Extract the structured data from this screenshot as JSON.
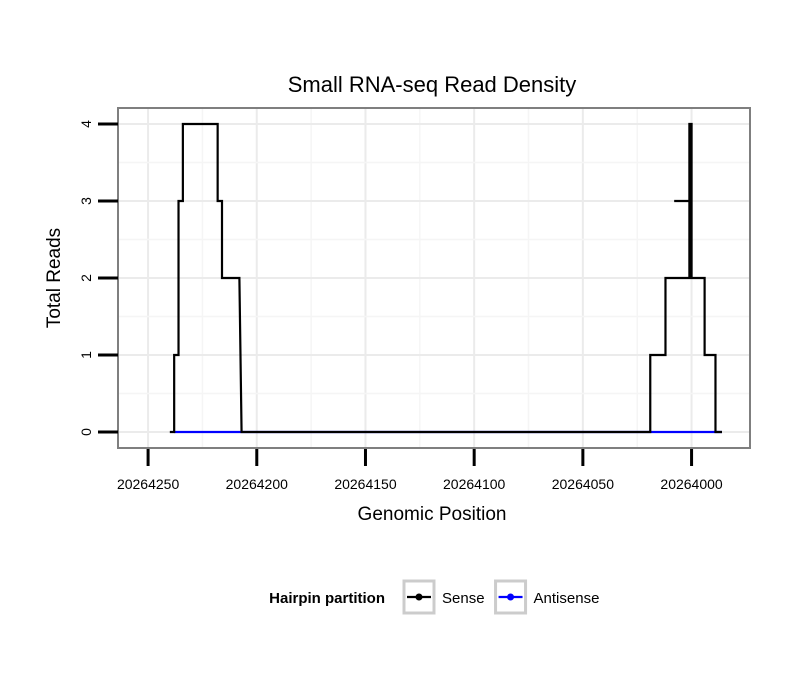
{
  "chart_data": {
    "type": "line",
    "title": "Small RNA-seq Read Density",
    "xlabel": "Genomic Position",
    "ylabel": "Total Reads",
    "xlim": [
      20264262,
      20263986
    ],
    "ylim": [
      0,
      4
    ],
    "x_reversed": true,
    "grid": true,
    "x_ticks": [
      20264250,
      20264200,
      20264150,
      20264100,
      20264050,
      20264000
    ],
    "x_tick_labels": [
      "20264250",
      "20264200",
      "20264150",
      "20264100",
      "20264050",
      "20264000"
    ],
    "y_ticks": [
      0,
      1,
      2,
      3,
      4
    ],
    "y_tick_labels": [
      "0",
      "1",
      "2",
      "3",
      "4"
    ],
    "legend": {
      "title": "Hairpin partition",
      "position": "bottom"
    },
    "series": [
      {
        "name": "Sense",
        "color": "#000000",
        "x": [
          20264240,
          20264238,
          20264238,
          20264236,
          20264236,
          20264234,
          20264234,
          20264232,
          20264232,
          20264218,
          20264218,
          20264216,
          20264216,
          20264214,
          20264214,
          20264208,
          20264208,
          20264207,
          20264207,
          20264019,
          20264019,
          20264012,
          20264012,
          20264010,
          20264010,
          20264001,
          20264001,
          20264000,
          20264000,
          20264008,
          20264008,
          20264000,
          20264000,
          20263994,
          20263994,
          20263989,
          20263989,
          20263986,
          20263986
        ],
        "y": [
          0,
          0,
          1,
          1,
          3,
          3,
          4,
          4,
          4,
          4,
          3,
          3,
          2,
          2,
          2,
          2,
          2,
          0,
          0,
          0,
          1,
          1,
          2,
          2,
          2,
          2,
          4,
          4,
          3,
          3,
          3,
          3,
          2,
          2,
          1,
          1,
          0,
          0,
          0
        ]
      },
      {
        "name": "Antisense",
        "color": "#0000ff",
        "x": [
          20264238,
          20264207,
          20264019,
          20263986
        ],
        "y": [
          0,
          0,
          0,
          0
        ]
      }
    ]
  }
}
